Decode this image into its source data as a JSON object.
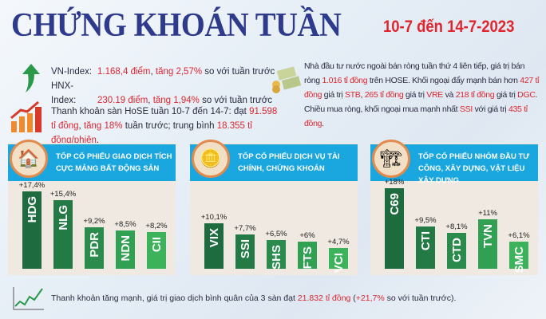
{
  "title": "CHỨNG KHOÁN TUẦN",
  "date": "10-7 đến 14-7-2023",
  "indices": {
    "vn_label": "VN-Index:",
    "vn_value": "1.168,4 điểm",
    "vn_change": "tăng 2,57%",
    "vn_suffix": "so với tuần trước",
    "hnx_label": "HNX-Index:",
    "hnx_value": "230.19 điểm",
    "hnx_change": "tăng 1,94%",
    "hnx_suffix": "so với tuần trước"
  },
  "liquidity": {
    "t1": "Thanh khoản sàn HoSE tuần 10-7 đến 14-7: đạt ",
    "v1": "91.598 tỉ đồng",
    "t2": ",",
    "v2": "tăng 18%",
    "t3": " tuần trước; trung bình ",
    "v3": "18.355 tỉ đồng/phiên",
    "t4": "."
  },
  "foreign": {
    "t1": "Nhà đầu tư nước ngoài bán ròng tuần thứ 4 liên tiếp, giá trị bán ròng ",
    "v1": "1.016 tỉ đồng",
    "t2": " trên HOSE. Khối ngoại đẩy mạnh bán hơn ",
    "v2": "427 tỉ đồng",
    "t3": " giá trị ",
    "v3": "STB",
    "t4": ", ",
    "v4": "265 tỉ đồng",
    "t5": " giá trị ",
    "v5": "VRE",
    "t6": " và ",
    "v6": "218 tỉ đồng",
    "t7": " giá trị ",
    "v7": "DGC",
    "t8": ". Chiều mua ròng, khối ngoại mua mạnh nhất ",
    "v8": "SSI",
    "t9": " với giá trị ",
    "v9": "435 tỉ đồng",
    "t10": "."
  },
  "footer": {
    "t1": "Thanh khoản tăng mạnh, giá trị giao dịch bình quân của 3 sàn đạt ",
    "v1": "21.832 tỉ đồng",
    "t2": " (",
    "v2": "+21,7%",
    "t3": " so với tuần trước)."
  },
  "colors": {
    "title": "#2e3a8c",
    "accent": "#e0262f",
    "header": "#1aa6df",
    "bar_dark": "#1e6b3f",
    "bar_light": "#3cb35a"
  },
  "chart_data": [
    {
      "type": "bar",
      "title": "TỐP CỔ PHIẾU GIAO DỊCH TÍCH CỰC MẢNG BẤT ĐỘNG SẢN",
      "icon": "house-icon",
      "categories": [
        "HDG",
        "NLG",
        "PDR",
        "NDN",
        "CII"
      ],
      "values": [
        17.4,
        15.4,
        9.2,
        8.5,
        8.2
      ],
      "labels": [
        "+17,4%",
        "+15,4%",
        "+9,2%",
        "+8,5%",
        "+8,2%"
      ]
    },
    {
      "type": "bar",
      "title": "TỐP CỔ PHIẾU DỊCH VỤ TÀI CHÍNH, CHỨNG KHOÁN",
      "icon": "coins-icon",
      "categories": [
        "VIX",
        "SSI",
        "SHS",
        "FTS",
        "VCI"
      ],
      "values": [
        10.1,
        7.7,
        6.5,
        6,
        4.7
      ],
      "labels": [
        "+10,1%",
        "+7,7%",
        "+6,5%",
        "+6%",
        "+4,7%"
      ]
    },
    {
      "type": "bar",
      "title": "TỐP CỔ PHIẾU NHÓM ĐẦU TƯ CÔNG, XÂY DỰNG, VẬT LIỆU XÂY DỰNG",
      "icon": "construction-icon",
      "categories": [
        "C69",
        "CTI",
        "CTD",
        "TVN",
        "SMC"
      ],
      "values": [
        18,
        9.5,
        8.1,
        11,
        6.1
      ],
      "labels": [
        "+18%",
        "+9,5%",
        "+8,1%",
        "+11%",
        "+6,1%"
      ]
    }
  ]
}
